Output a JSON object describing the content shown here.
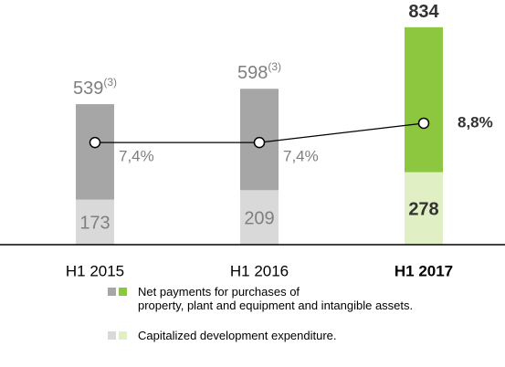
{
  "chart_data": {
    "type": "bar",
    "stacked": true,
    "categories": [
      "H1 2015",
      "H1 2016",
      "H1 2017"
    ],
    "highlight_category": 2,
    "series": [
      {
        "name": "Capitalized development expenditure.",
        "color": [
          "#d9d9d9",
          "#d9d9d9",
          "#e1efc4"
        ],
        "values": [
          173,
          209,
          278
        ]
      },
      {
        "name": "Net payments for purchases of\nproperty, plant and equipment and intangible assets.",
        "color": [
          "#a6a6a6",
          "#a6a6a6",
          "#8dc63f"
        ],
        "values": [
          366,
          389,
          556
        ]
      },
      {
        "type": "line",
        "axis": "y2",
        "color": "#000000",
        "values": [
          7.4,
          7.4,
          8.8
        ],
        "value_labels": [
          "7,4%",
          "7,4%",
          "8,8%"
        ]
      }
    ],
    "total_labels": [
      539,
      598,
      834
    ],
    "total_notes": [
      "(3)",
      "(3)",
      null
    ],
    "ylim": [
      0,
      900
    ],
    "y2lim": [
      0,
      17
    ],
    "legend_order": [
      1,
      0
    ]
  }
}
